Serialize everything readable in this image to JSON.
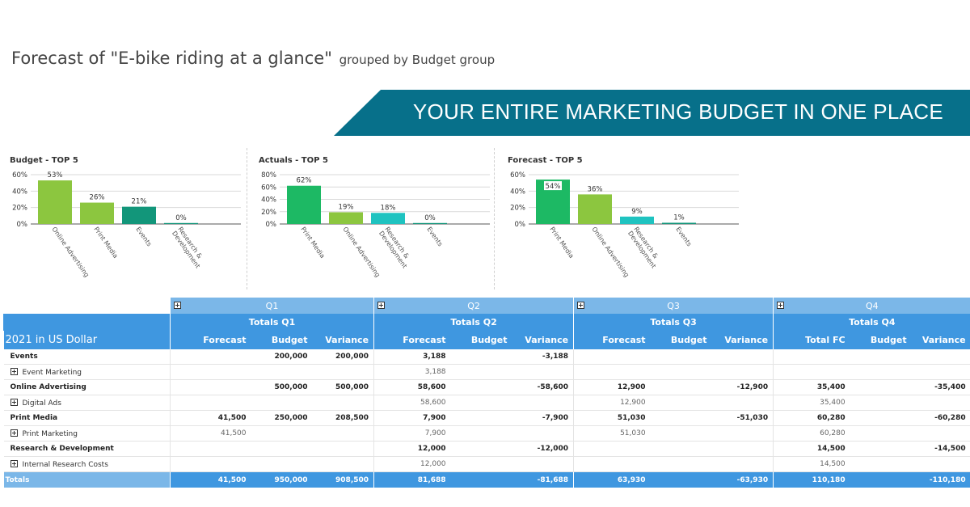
{
  "header": {
    "title": "Forecast of \"E-bike riding at a glance\"",
    "subtitle": "grouped by Budget group",
    "banner": "YOUR ENTIRE MARKETING BUDGET IN ONE PLACE",
    "banner_color": "#07708a"
  },
  "chart_data": [
    {
      "type": "bar",
      "title": "Budget - TOP 5",
      "categories": [
        "Online Advertising",
        "Print Media",
        "Events",
        "Research & Development"
      ],
      "values": [
        53,
        26,
        21,
        0
      ],
      "labels": [
        "53%",
        "26%",
        "21%",
        "0%"
      ],
      "colors": [
        "#8cc63f",
        "#8cc63f",
        "#12967a",
        "#12967a"
      ],
      "yticks": [
        "60%",
        "40%",
        "20%",
        "0%"
      ],
      "ylim": [
        0,
        60
      ],
      "grid": true
    },
    {
      "type": "bar",
      "title": "Actuals - TOP 5",
      "categories": [
        "Print Media",
        "Online Advertising",
        "Research & Development",
        "Events"
      ],
      "values": [
        62,
        19,
        18,
        0
      ],
      "labels": [
        "62%",
        "19%",
        "18%",
        "0%"
      ],
      "colors": [
        "#1db964",
        "#8cc63f",
        "#1fc3c0",
        "#12967a"
      ],
      "yticks": [
        "80%",
        "60%",
        "40%",
        "20%",
        "0%"
      ],
      "ylim": [
        0,
        80
      ],
      "grid": true
    },
    {
      "type": "bar",
      "title": "Forecast - TOP 5",
      "categories": [
        "Print Media",
        "Online Advertising",
        "Research & Development",
        "Events"
      ],
      "values": [
        54,
        36,
        9,
        1
      ],
      "labels": [
        "54%",
        "36%",
        "9%",
        "1%"
      ],
      "colors": [
        "#1db964",
        "#8cc63f",
        "#1fc3c0",
        "#12967a"
      ],
      "yticks": [
        "60%",
        "40%",
        "20%",
        "0%"
      ],
      "ylim": [
        0,
        60
      ],
      "grid": true
    }
  ],
  "table": {
    "row_header_label": "2021 in US Dollar",
    "quarters": [
      {
        "name": "Q1",
        "total": "Totals Q1",
        "cols": [
          "Forecast",
          "Budget",
          "Variance"
        ]
      },
      {
        "name": "Q2",
        "total": "Totals Q2",
        "cols": [
          "Forecast",
          "Budget",
          "Variance"
        ]
      },
      {
        "name": "Q3",
        "total": "Totals Q3",
        "cols": [
          "Forecast",
          "Budget",
          "Variance"
        ]
      },
      {
        "name": "Q4",
        "total": "Totals Q4",
        "cols": [
          "Total FC",
          "Budget",
          "Variance"
        ]
      }
    ],
    "rows": [
      {
        "label": "Events",
        "type": "grp",
        "cells": [
          "",
          "200,000",
          "200,000",
          "3,188",
          "",
          "-3,188",
          "",
          "",
          "",
          "",
          "",
          ""
        ]
      },
      {
        "label": "Event Marketing",
        "type": "sub",
        "cells": [
          "",
          "",
          "",
          "3,188",
          "",
          "",
          "",
          "",
          "",
          "",
          "",
          ""
        ]
      },
      {
        "label": "Online Advertising",
        "type": "grp",
        "cells": [
          "",
          "500,000",
          "500,000",
          "58,600",
          "",
          "-58,600",
          "12,900",
          "",
          "-12,900",
          "35,400",
          "",
          "-35,400"
        ]
      },
      {
        "label": "Digital Ads",
        "type": "sub",
        "cells": [
          "",
          "",
          "",
          "58,600",
          "",
          "",
          "12,900",
          "",
          "",
          "35,400",
          "",
          ""
        ]
      },
      {
        "label": "Print Media",
        "type": "grp",
        "cells": [
          "41,500",
          "250,000",
          "208,500",
          "7,900",
          "",
          "-7,900",
          "51,030",
          "",
          "-51,030",
          "60,280",
          "",
          "-60,280"
        ]
      },
      {
        "label": "Print Marketing",
        "type": "sub",
        "cells": [
          "41,500",
          "",
          "",
          "7,900",
          "",
          "",
          "51,030",
          "",
          "",
          "60,280",
          "",
          ""
        ]
      },
      {
        "label": "Research & Development",
        "type": "grp",
        "cells": [
          "",
          "",
          "",
          "12,000",
          "",
          "-12,000",
          "",
          "",
          "",
          "14,500",
          "",
          "-14,500"
        ]
      },
      {
        "label": "Internal Research Costs",
        "type": "sub",
        "cells": [
          "",
          "",
          "",
          "12,000",
          "",
          "",
          "",
          "",
          "",
          "14,500",
          "",
          ""
        ]
      }
    ],
    "totals": {
      "label": "Totals",
      "cells": [
        "41,500",
        "950,000",
        "908,500",
        "81,688",
        "",
        "-81,688",
        "63,930",
        "",
        "-63,930",
        "110,180",
        "",
        "-110,180"
      ]
    }
  }
}
